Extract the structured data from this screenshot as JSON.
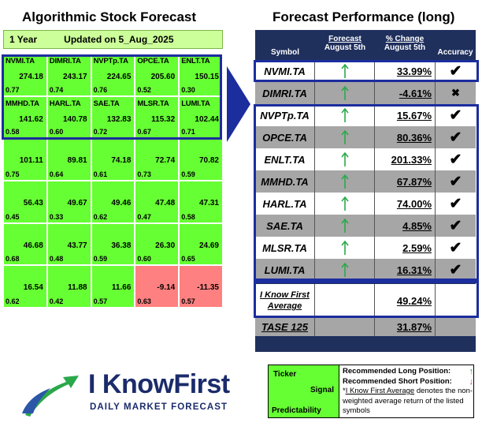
{
  "left_title": "Algorithmic Stock Forecast",
  "right_title": "Forecast Performance (long)",
  "grid_header": {
    "period": "1 Year",
    "updated": "Updated on 5_Aug_2025"
  },
  "grid": [
    {
      "ticker": "NVMI.TA",
      "signal": "274.18",
      "predictability": "0.77"
    },
    {
      "ticker": "DIMRI.TA",
      "signal": "243.17",
      "predictability": "0.74"
    },
    {
      "ticker": "NVPTp.TA",
      "signal": "224.65",
      "predictability": "0.76"
    },
    {
      "ticker": "OPCE.TA",
      "signal": "205.60",
      "predictability": "0.52"
    },
    {
      "ticker": "ENLT.TA",
      "signal": "150.15",
      "predictability": "0.30"
    },
    {
      "ticker": "MMHD.TA",
      "signal": "141.62",
      "predictability": "0.58"
    },
    {
      "ticker": "HARL.TA",
      "signal": "140.78",
      "predictability": "0.60"
    },
    {
      "ticker": "SAE.TA",
      "signal": "132.83",
      "predictability": "0.72"
    },
    {
      "ticker": "MLSR.TA",
      "signal": "115.32",
      "predictability": "0.67"
    },
    {
      "ticker": "LUMI.TA",
      "signal": "102.44",
      "predictability": "0.71"
    },
    {
      "ticker": "",
      "signal": "101.11",
      "predictability": "0.75"
    },
    {
      "ticker": "",
      "signal": "89.81",
      "predictability": "0.64"
    },
    {
      "ticker": "",
      "signal": "74.18",
      "predictability": "0.61"
    },
    {
      "ticker": "",
      "signal": "72.74",
      "predictability": "0.73"
    },
    {
      "ticker": "",
      "signal": "70.82",
      "predictability": "0.59"
    },
    {
      "ticker": "",
      "signal": "56.43",
      "predictability": "0.45"
    },
    {
      "ticker": "",
      "signal": "49.67",
      "predictability": "0.33"
    },
    {
      "ticker": "",
      "signal": "49.46",
      "predictability": "0.62"
    },
    {
      "ticker": "",
      "signal": "47.48",
      "predictability": "0.47"
    },
    {
      "ticker": "",
      "signal": "47.31",
      "predictability": "0.58"
    },
    {
      "ticker": "",
      "signal": "46.68",
      "predictability": "0.68"
    },
    {
      "ticker": "",
      "signal": "43.77",
      "predictability": "0.48"
    },
    {
      "ticker": "",
      "signal": "36.38",
      "predictability": "0.59"
    },
    {
      "ticker": "",
      "signal": "26.30",
      "predictability": "0.60"
    },
    {
      "ticker": "",
      "signal": "24.69",
      "predictability": "0.65"
    },
    {
      "ticker": "",
      "signal": "16.54",
      "predictability": "0.62"
    },
    {
      "ticker": "",
      "signal": "11.88",
      "predictability": "0.42"
    },
    {
      "ticker": "",
      "signal": "11.66",
      "predictability": "0.57"
    },
    {
      "ticker": "",
      "signal": "-9.14",
      "predictability": "0.63"
    },
    {
      "ticker": "",
      "signal": "-11.35",
      "predictability": "0.57"
    }
  ],
  "table_headers": {
    "symbol": "Symbol",
    "forecast": "Forecast",
    "forecast_date": "August 5th",
    "change": "% Change",
    "change_date": "August 5th",
    "accuracy": "Accuracy"
  },
  "rows": [
    {
      "symbol": "NVMI.TA",
      "change": "33.99%",
      "accuracy": "✔"
    },
    {
      "symbol": "DIMRI.TA",
      "change": "-4.61%",
      "accuracy": "✖"
    },
    {
      "symbol": "NVPTp.TA",
      "change": "15.67%",
      "accuracy": "✔"
    },
    {
      "symbol": "OPCE.TA",
      "change": "80.36%",
      "accuracy": "✔"
    },
    {
      "symbol": "ENLT.TA",
      "change": "201.33%",
      "accuracy": "✔"
    },
    {
      "symbol": "MMHD.TA",
      "change": "67.87%",
      "accuracy": "✔"
    },
    {
      "symbol": "HARL.TA",
      "change": "74.00%",
      "accuracy": "✔"
    },
    {
      "symbol": "SAE.TA",
      "change": "4.85%",
      "accuracy": "✔"
    },
    {
      "symbol": "MLSR.TA",
      "change": "2.59%",
      "accuracy": "✔"
    },
    {
      "symbol": "LUMI.TA",
      "change": "16.31%",
      "accuracy": "✔"
    }
  ],
  "average": {
    "label_line1": "I Know First",
    "label_line2": "Average",
    "change": "49.24%"
  },
  "benchmark": {
    "label": "TASE 125",
    "change": "31.87%"
  },
  "logo": {
    "name": "I KnowFirst",
    "tagline": "DAILY MARKET FORECAST"
  },
  "legend": {
    "ticker": "Ticker",
    "signal": "Signal",
    "predictability": "Predictability",
    "long": "Recommended Long Position:",
    "short": "Recommended Short Position:",
    "average_link": "I Know First Average",
    "average_desc": " denotes the non-weighted average return of the listed symbols"
  },
  "colors": {
    "positive": "#66ff33",
    "negative": "#ff8080",
    "header": "#ccff99",
    "table_bg": "#20305d",
    "highlight": "#1c2d9e",
    "up_arrow": "#2aa84a",
    "down_arrow": "#e23a3a"
  }
}
